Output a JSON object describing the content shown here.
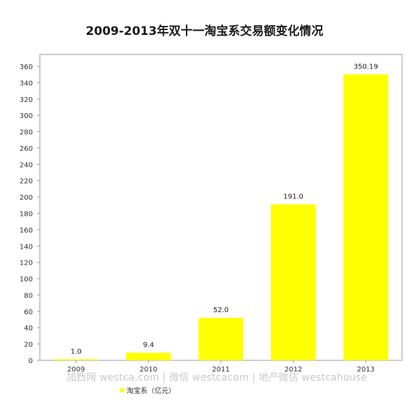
{
  "watermark": "加西网 westca.com | 微信 westcacom | 地产微信 westcahouse",
  "chart_data": {
    "type": "bar",
    "title": "2009-2013年双十一淘宝系交易额变化情况",
    "categories": [
      "2009",
      "2010",
      "2011",
      "2012",
      "2013"
    ],
    "series": [
      {
        "name": "淘宝系（亿元）",
        "values": [
          1.0,
          9.4,
          52.0,
          191.0,
          350.19
        ],
        "value_labels": [
          "1.0",
          "9.4",
          "52.0",
          "191.0",
          "350.19"
        ],
        "color": "#ffff00"
      }
    ],
    "xlabel": "",
    "ylabel": "",
    "ylim": [
      0,
      360
    ],
    "yticks": [
      0,
      20,
      40,
      60,
      80,
      100,
      120,
      140,
      160,
      180,
      200,
      220,
      240,
      260,
      280,
      300,
      320,
      340,
      360
    ],
    "grid": false,
    "legend_position": "bottom-left"
  }
}
